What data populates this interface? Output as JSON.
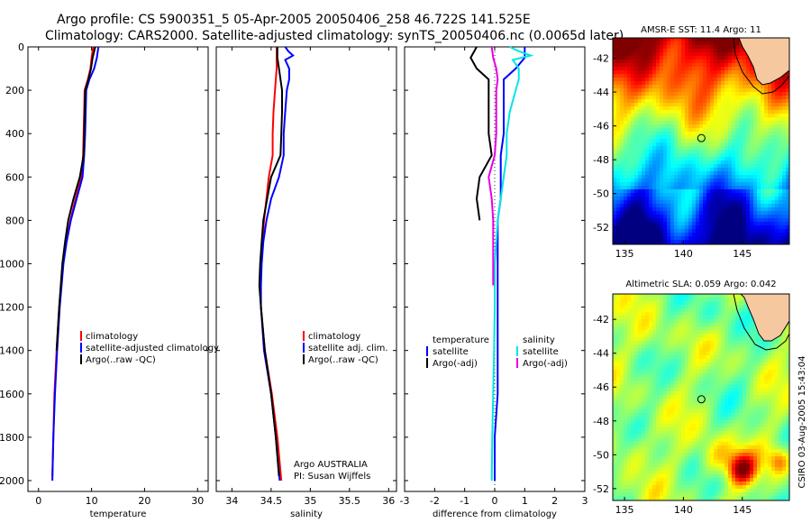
{
  "header": {
    "line1": "Argo profile: CS 5900351_5 05-Apr-2005 20050406_258 46.722S 141.525E",
    "line2": "Climatology: CARS2000. Satellite-adjusted climatology: synTS_20050406.nc (0.0065d later)"
  },
  "credit": {
    "text": "CSIRO 03-Aug-2005 15:43:04"
  },
  "chart_data": [
    {
      "type": "line",
      "title": "",
      "xlabel": "temperature",
      "ylabel": "",
      "xlim": [
        -2,
        32
      ],
      "ylim": [
        2050,
        0
      ],
      "xticks": [
        0,
        10,
        20,
        30
      ],
      "yticks": [
        0,
        200,
        400,
        600,
        800,
        1000,
        1200,
        1400,
        1600,
        1800,
        2000
      ],
      "legend": [
        "climatology",
        "satellite-adjusted climatology",
        "Argo(..raw -QC)"
      ],
      "series": [
        {
          "name": "climatology",
          "color": "#ff0000",
          "depth": [
            0,
            50,
            100,
            150,
            200,
            300,
            400,
            500,
            600,
            700,
            800,
            900,
            1000,
            1200,
            1400,
            1600,
            1800,
            1980
          ],
          "values": [
            10.3,
            10.0,
            9.8,
            9.3,
            8.7,
            8.6,
            8.5,
            8.4,
            8.1,
            7.0,
            6.0,
            5.2,
            4.6,
            3.9,
            3.4,
            3.0,
            2.8,
            2.6
          ]
        },
        {
          "name": "satellite-adjusted climatology",
          "color": "#0000ff",
          "depth": [
            0,
            50,
            100,
            150,
            200,
            300,
            400,
            500,
            600,
            700,
            800,
            900,
            1000,
            1200,
            1400,
            1600,
            1800,
            2000
          ],
          "values": [
            11.3,
            11.0,
            10.5,
            9.6,
            9.0,
            8.9,
            8.8,
            8.6,
            8.3,
            7.2,
            6.1,
            5.3,
            4.7,
            4.0,
            3.5,
            3.1,
            2.8,
            2.6
          ]
        },
        {
          "name": "Argo(..raw -QC)",
          "color": "#000000",
          "depth": [
            0,
            50,
            100,
            150,
            200,
            300,
            400,
            500,
            600,
            700,
            800,
            900,
            1000,
            1200,
            1400
          ],
          "values": [
            10.7,
            10.2,
            9.9,
            9.4,
            8.8,
            8.7,
            8.6,
            8.5,
            7.8,
            6.6,
            5.6,
            5.0,
            4.5,
            3.9,
            3.4
          ]
        }
      ]
    },
    {
      "type": "line",
      "title": "",
      "xlabel": "salinity",
      "ylabel": "",
      "xlim": [
        33.8,
        36.1
      ],
      "ylim": [
        2050,
        0
      ],
      "xticks": [
        34,
        34.5,
        35,
        35.5,
        36
      ],
      "legend": [
        "climatology",
        "satellite adj. clim.",
        "Argo(..raw -QC)"
      ],
      "annotations": [
        "Argo AUSTRALIA",
        "PI: Susan Wijffels"
      ],
      "series": [
        {
          "name": "climatology",
          "color": "#ff0000",
          "depth": [
            0,
            50,
            100,
            150,
            200,
            300,
            400,
            500,
            600,
            700,
            800,
            900,
            1000,
            1100,
            1200,
            1400,
            1600,
            1800,
            2000
          ],
          "values": [
            34.57,
            34.57,
            34.57,
            34.56,
            34.55,
            34.53,
            34.52,
            34.52,
            34.47,
            34.44,
            34.41,
            34.39,
            34.37,
            34.36,
            34.37,
            34.42,
            34.51,
            34.58,
            34.63
          ]
        },
        {
          "name": "satellite adj. clim.",
          "color": "#0000ff",
          "depth": [
            0,
            20,
            40,
            60,
            100,
            150,
            200,
            300,
            400,
            500,
            600,
            700,
            800,
            900,
            1000,
            1100,
            1200,
            1400,
            1600,
            1800,
            2000
          ],
          "values": [
            34.68,
            34.72,
            34.78,
            34.68,
            34.73,
            34.73,
            34.7,
            34.68,
            34.66,
            34.66,
            34.6,
            34.5,
            34.44,
            34.4,
            34.38,
            34.37,
            34.37,
            34.41,
            34.5,
            34.56,
            34.61
          ]
        },
        {
          "name": "Argo(..raw -QC)",
          "color": "#000000",
          "depth": [
            0,
            50,
            100,
            150,
            200,
            300,
            400,
            500,
            600,
            700,
            800,
            900,
            1000,
            1100,
            1200,
            1400,
            1600,
            1800,
            1980
          ],
          "values": [
            34.58,
            34.58,
            34.6,
            34.62,
            34.64,
            34.64,
            34.63,
            34.62,
            34.5,
            34.45,
            34.4,
            34.38,
            34.36,
            34.35,
            34.37,
            34.42,
            34.5,
            34.56,
            34.6
          ]
        }
      ]
    },
    {
      "type": "line",
      "title": "",
      "xlabel": "difference from climatology",
      "ylabel": "",
      "xlim": [
        -3,
        3
      ],
      "ylim": [
        2050,
        0
      ],
      "xticks": [
        -3,
        -2,
        -1,
        0,
        1,
        2,
        3
      ],
      "legend_left": [
        "temperature",
        "satellite",
        "Argo(-adj)"
      ],
      "legend_right": [
        "salinity",
        "satellite",
        "Argo(-adj)"
      ],
      "series": [
        {
          "name": "temperature satellite",
          "color": "#0000ff",
          "depth": [
            0,
            50,
            100,
            150,
            200,
            300,
            400,
            500,
            600,
            700,
            800,
            900,
            1000,
            1200,
            1400,
            1600,
            1800,
            2000
          ],
          "values": [
            1.0,
            1.0,
            0.7,
            0.3,
            0.3,
            0.3,
            0.3,
            0.2,
            0.2,
            0.2,
            0.1,
            0.1,
            0.1,
            0.1,
            0.1,
            0.1,
            0.0,
            0.0
          ]
        },
        {
          "name": "temperature Argo(-adj)",
          "color": "#000000",
          "depth": [
            0,
            50,
            100,
            150,
            200,
            300,
            400,
            500,
            600,
            700,
            800
          ],
          "values": [
            -0.6,
            -0.8,
            -0.6,
            -0.2,
            -0.2,
            -0.2,
            -0.2,
            -0.1,
            -0.5,
            -0.6,
            -0.5
          ]
        },
        {
          "name": "salinity satellite",
          "color": "#00e5e5",
          "depth": [
            0,
            20,
            40,
            60,
            100,
            150,
            200,
            300,
            400,
            500,
            600,
            700,
            800,
            900,
            1000,
            1200,
            1400,
            1600,
            1800,
            2000
          ],
          "values": [
            0.5,
            0.8,
            1.2,
            0.6,
            0.8,
            0.8,
            0.7,
            0.5,
            0.4,
            0.4,
            0.3,
            0.2,
            0.1,
            0.05,
            0.0,
            0.0,
            -0.02,
            -0.05,
            -0.08,
            -0.1
          ]
        },
        {
          "name": "salinity Argo(-adj)",
          "color": "#e600e6",
          "depth": [
            0,
            50,
            100,
            150,
            200,
            300,
            400,
            500,
            600,
            700,
            800,
            900,
            1000,
            1100
          ],
          "values": [
            -0.1,
            -0.05,
            0.05,
            0.1,
            0.05,
            0.05,
            0.05,
            0.0,
            -0.2,
            -0.1,
            -0.05,
            -0.05,
            -0.05,
            -0.05
          ]
        }
      ],
      "reference_line": 0
    },
    {
      "type": "heatmap",
      "title": "AMSR-E SST: 11.4 Argo: 11",
      "xlim": [
        134,
        149
      ],
      "ylim": [
        -53,
        -40.8
      ],
      "xticks": [
        135,
        140,
        145
      ],
      "yticks": [
        -42,
        -44,
        -46,
        -48,
        -50,
        -52
      ],
      "marker": {
        "lon": 141.525,
        "lat": -46.722
      }
    },
    {
      "type": "heatmap",
      "title": "Altimetric SLA: 0.059 Argo: 0.042",
      "xlim": [
        134,
        149
      ],
      "ylim": [
        -52.7,
        -40.5
      ],
      "xticks": [
        135,
        140,
        145
      ],
      "yticks": [
        -42,
        -44,
        -46,
        -48,
        -50,
        -52
      ],
      "marker": {
        "lon": 141.525,
        "lat": -46.722
      }
    }
  ]
}
